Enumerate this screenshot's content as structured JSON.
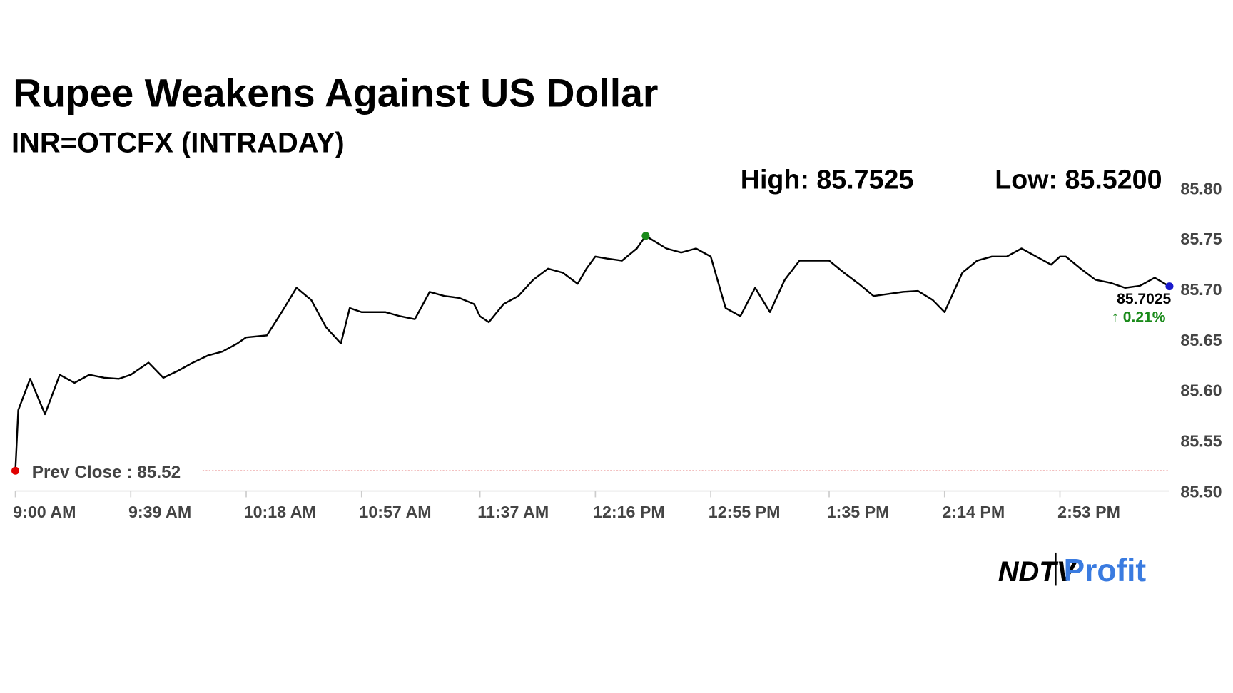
{
  "chart_data": {
    "type": "line",
    "title": "Rupee Weakens Against US Dollar",
    "subtitle": "INR=OTCFX (INTRADAY)",
    "high_label": "High: 85.7525",
    "low_label": "Low: 85.5200",
    "last_label": "85.7025",
    "change_label": "↑ 0.21%",
    "prev_close": {
      "value": 85.52,
      "label": "Prev Close : 85.52",
      "color": "#cc0000"
    },
    "logo": {
      "left": "NDTV",
      "right": "Profit"
    },
    "x": [
      "9:00 AM",
      "9:01 AM",
      "9:05 AM",
      "9:10 AM",
      "9:15 AM",
      "9:20 AM",
      "9:25 AM",
      "9:30 AM",
      "9:35 AM",
      "9:39 AM",
      "9:45 AM",
      "9:50 AM",
      "9:55 AM",
      "10:00 AM",
      "10:05 AM",
      "10:10 AM",
      "10:15 AM",
      "10:18 AM",
      "10:25 AM",
      "10:30 AM",
      "10:35 AM",
      "10:40 AM",
      "10:45 AM",
      "10:50 AM",
      "10:53 AM",
      "10:57 AM",
      "11:05 AM",
      "11:10 AM",
      "11:15 AM",
      "11:20 AM",
      "11:25 AM",
      "11:30 AM",
      "11:35 AM",
      "11:37 AM",
      "11:40 AM",
      "11:45 AM",
      "11:50 AM",
      "11:55 AM",
      "12:00 PM",
      "12:05 PM",
      "12:10 PM",
      "12:13 PM",
      "12:16 PM",
      "12:20 PM",
      "12:25 PM",
      "12:30 PM",
      "12:33 PM",
      "12:40 PM",
      "12:45 PM",
      "12:50 PM",
      "12:55 PM",
      "1:00 PM",
      "1:05 PM",
      "1:10 PM",
      "1:15 PM",
      "1:20 PM",
      "1:25 PM",
      "1:30 PM",
      "1:35 PM",
      "1:40 PM",
      "1:45 PM",
      "1:50 PM",
      "1:55 PM",
      "2:00 PM",
      "2:05 PM",
      "2:10 PM",
      "2:14 PM",
      "2:20 PM",
      "2:25 PM",
      "2:30 PM",
      "2:35 PM",
      "2:40 PM",
      "2:45 PM",
      "2:50 PM",
      "2:53 PM",
      "2:55 PM",
      "3:00 PM",
      "3:05 PM",
      "3:10 PM",
      "3:15 PM",
      "3:20 PM",
      "3:25 PM",
      "3:30 PM"
    ],
    "series": [
      {
        "name": "INR=OTCFX",
        "color": "#000000",
        "values": [
          85.52,
          85.58,
          85.611,
          85.576,
          85.615,
          85.607,
          85.615,
          85.612,
          85.611,
          85.615,
          85.627,
          85.612,
          85.619,
          85.627,
          85.634,
          85.638,
          85.646,
          85.652,
          85.654,
          85.677,
          85.701,
          85.689,
          85.662,
          85.646,
          85.681,
          85.677,
          85.677,
          85.673,
          85.67,
          85.697,
          85.693,
          85.691,
          85.685,
          85.673,
          85.667,
          85.685,
          85.693,
          85.709,
          85.72,
          85.716,
          85.705,
          85.72,
          85.732,
          85.73,
          85.728,
          85.74,
          85.7525,
          85.74,
          85.736,
          85.74,
          85.732,
          85.681,
          85.673,
          85.701,
          85.677,
          85.709,
          85.728,
          85.728,
          85.728,
          85.716,
          85.705,
          85.693,
          85.695,
          85.697,
          85.698,
          85.689,
          85.677,
          85.716,
          85.728,
          85.732,
          85.732,
          85.74,
          85.732,
          85.724,
          85.732,
          85.732,
          85.72,
          85.709,
          85.706,
          85.701,
          85.703,
          85.711,
          85.7025
        ]
      }
    ],
    "high_color": "#1a8a1a",
    "low_color": "#e00000",
    "last_color": "#1a1acc",
    "change_color": "#1a8a1a",
    "xlim": [
      "9:00 AM",
      "3:30 PM"
    ],
    "xticks": [
      "9:00 AM",
      "9:39 AM",
      "10:18 AM",
      "10:57 AM",
      "11:37 AM",
      "12:16 PM",
      "12:55 PM",
      "1:35 PM",
      "2:14 PM",
      "2:53 PM"
    ],
    "ylim": [
      85.5,
      85.8
    ],
    "yticks": [
      {
        "value": 85.5,
        "label": "85.50"
      },
      85.55,
      {
        "value": 85.6,
        "label": "85.60"
      },
      85.65,
      {
        "value": 85.7,
        "label": "85.70"
      },
      85.75,
      {
        "value": 85.8,
        "label": "85.80"
      }
    ],
    "grid": false
  }
}
